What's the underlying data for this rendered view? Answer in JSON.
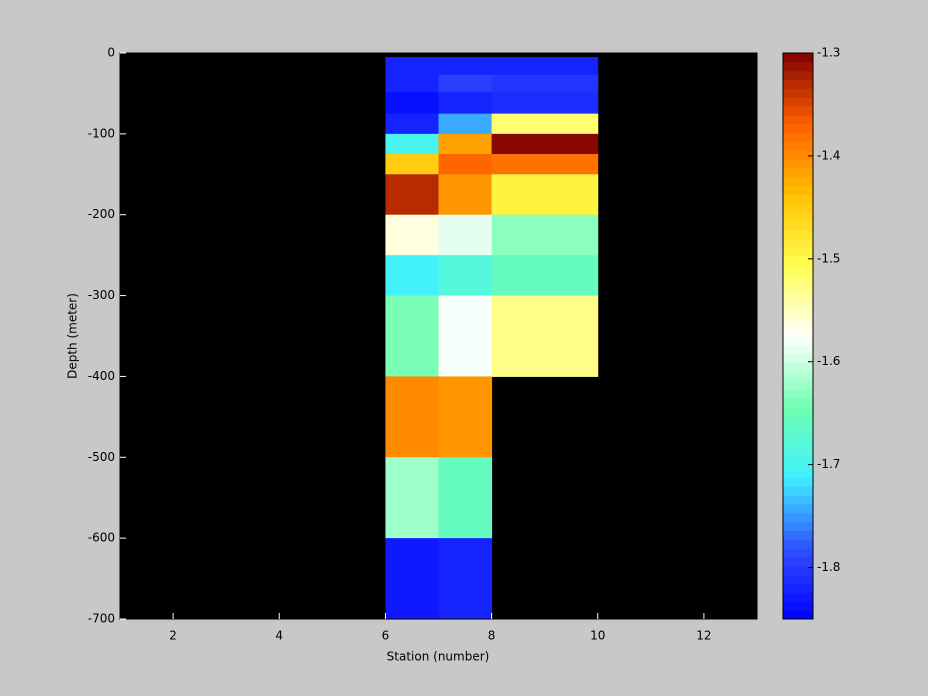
{
  "chart_data": {
    "type": "heatmap",
    "xlabel": "Station (number)",
    "ylabel": "Depth (meter)",
    "xlim": [
      1,
      13
    ],
    "xticks": [
      2,
      4,
      6,
      8,
      10,
      12
    ],
    "ylim": [
      -700,
      0
    ],
    "yticks": [
      0,
      -100,
      -200,
      -300,
      -400,
      -500,
      -600,
      -700
    ],
    "x_edges": [
      6,
      7,
      8,
      10
    ],
    "y_edges": [
      -5,
      -27,
      -48,
      -75,
      -100,
      -125,
      -150,
      -200,
      -250,
      -300,
      -400,
      -500,
      -600,
      -700
    ],
    "z": [
      [
        -1.82,
        -1.82,
        -1.82
      ],
      [
        -1.82,
        -1.79,
        -1.8
      ],
      [
        -1.84,
        -1.82,
        -1.81
      ],
      [
        -1.82,
        -1.74,
        -1.52
      ],
      [
        -1.7,
        -1.42,
        -1.3
      ],
      [
        -1.45,
        -1.37,
        -1.38
      ],
      [
        -1.33,
        -1.41,
        -1.49
      ],
      [
        -1.56,
        -1.59,
        -1.63
      ],
      [
        -1.71,
        -1.68,
        -1.66
      ],
      [
        -1.64,
        -1.58,
        -1.53
      ],
      [
        -1.4,
        -1.41,
        null
      ],
      [
        -1.62,
        -1.66,
        null
      ],
      [
        -1.83,
        -1.82,
        null
      ]
    ],
    "clim": [
      -1.85,
      -1.3
    ],
    "cticks": [
      -1.3,
      -1.4,
      -1.5,
      -1.6,
      -1.7,
      -1.8
    ],
    "colormap": [
      "#0000ff",
      "#3050ff",
      "#40f0ff",
      "#70ffb0",
      "#ffffff",
      "#ffff50",
      "#ffc000",
      "#ff6000",
      "#800000"
    ],
    "background": "#000000"
  }
}
